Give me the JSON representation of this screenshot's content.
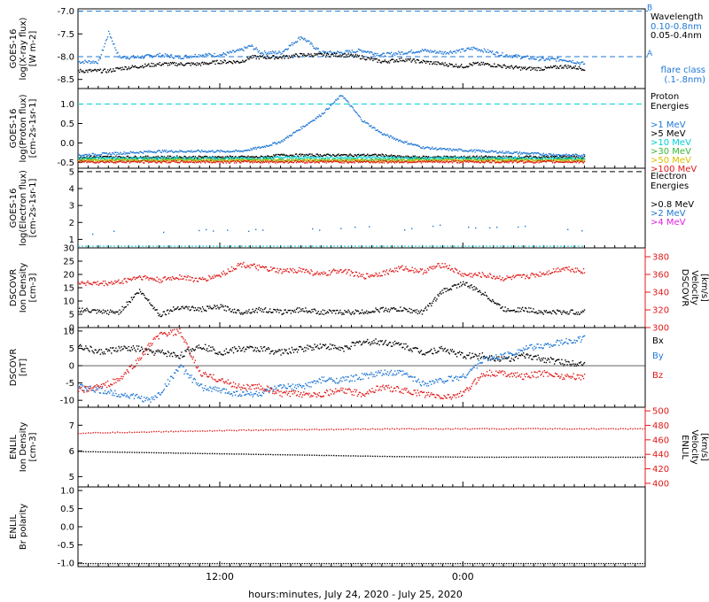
{
  "colors": {
    "black": "#000000",
    "blue": "#1f77d4",
    "cyan": "#00d0d8",
    "green": "#3ab83a",
    "yellow": "#d8c000",
    "orange": "#f07f00",
    "red": "#e01818",
    "magenta": "#e020e0",
    "grid": "#9a9a9a"
  },
  "x_axis": {
    "label": "hours:minutes, July 24, 2020 - July 25, 2020",
    "ticks": [
      "12:00",
      "0:00"
    ]
  },
  "chart_data": [
    {
      "type": "scatter",
      "panel": "goes-xray",
      "ylabel": [
        "GOES-16",
        "log(X-ray flux)",
        "[W m-2]"
      ],
      "yticks": [
        "-7.0",
        "-7.5",
        "-8.0",
        "-8.5"
      ],
      "ylim": [
        -8.7,
        -6.95
      ],
      "legend": {
        "title": "Wavelength",
        "entries": [
          "0.10-0.8nm",
          "0.05-0.4nm"
        ],
        "note": [
          "flare class",
          "(.1-.8nm)"
        ]
      },
      "reference_lines": [
        {
          "label": "B",
          "value": -7.0
        },
        {
          "label": "A",
          "value": -8.0
        }
      ],
      "x_hours": [
        0,
        1,
        1.5,
        2,
        3,
        4,
        5,
        6,
        7,
        8,
        8.5,
        9,
        10,
        11,
        12,
        13,
        14,
        15,
        16,
        17,
        18,
        19,
        19.5,
        20,
        21,
        22,
        23,
        24,
        25
      ],
      "series": [
        {
          "name": "0.10-0.8nm",
          "color": "blue",
          "values": [
            -8.1,
            -8.1,
            -7.45,
            -8.0,
            -8.0,
            -7.95,
            -8.0,
            -7.95,
            -7.95,
            -7.85,
            -7.75,
            -7.9,
            -7.9,
            -7.55,
            -7.9,
            -7.9,
            -7.85,
            -7.95,
            -7.9,
            -7.85,
            -7.9,
            -7.85,
            -7.8,
            -7.85,
            -7.95,
            -8.0,
            -8.05,
            -8.05,
            -8.15
          ]
        },
        {
          "name": "0.05-0.4nm",
          "color": "black",
          "values": [
            -8.3,
            -8.3,
            -8.3,
            -8.25,
            -8.2,
            -8.15,
            -8.15,
            -8.15,
            -8.1,
            -8.1,
            -8.0,
            -8.0,
            -8.0,
            -7.95,
            -7.95,
            -7.95,
            -8.0,
            -8.1,
            -8.05,
            -8.1,
            -8.15,
            -8.2,
            -8.15,
            -8.15,
            -8.2,
            -8.25,
            -8.25,
            -8.2,
            -8.25
          ]
        }
      ]
    },
    {
      "type": "scatter",
      "panel": "goes-proton",
      "ylabel": [
        "GOES-16",
        "log(Proton flux)",
        "[cm-2s-1sr-1]"
      ],
      "yticks": [
        "1.0",
        "0.5",
        "0.0",
        "-0.5"
      ],
      "ylim": [
        -0.65,
        1.4
      ],
      "legend": {
        "title": [
          "Proton",
          "Energies"
        ],
        "entries": [
          ">1 MeV",
          ">5 MeV",
          ">10 MeV",
          ">30 MeV",
          ">50 MeV",
          ">100 MeV"
        ]
      },
      "reference_lines": [
        {
          "value": 1.0
        }
      ],
      "x_hours": [
        0,
        2,
        4,
        6,
        8,
        9,
        10,
        11,
        12,
        13,
        14,
        15,
        16,
        17,
        18,
        20,
        22,
        24,
        25
      ],
      "series": [
        {
          "name": ">1 MeV",
          "color": "blue",
          "values": [
            -0.3,
            -0.25,
            -0.2,
            -0.2,
            -0.2,
            -0.1,
            0.05,
            0.4,
            0.75,
            1.25,
            0.6,
            0.25,
            0.05,
            -0.1,
            -0.15,
            -0.2,
            -0.25,
            -0.3,
            -0.3
          ]
        },
        {
          "name": ">5 MeV",
          "color": "black",
          "values": [
            -0.35,
            -0.35,
            -0.35,
            -0.35,
            -0.35,
            -0.35,
            -0.3,
            -0.3,
            -0.3,
            -0.3,
            -0.3,
            -0.3,
            -0.35,
            -0.35,
            -0.35,
            -0.35,
            -0.35,
            -0.35,
            -0.35
          ]
        },
        {
          "name": ">10 MeV",
          "color": "cyan",
          "values": [
            -0.38,
            -0.38,
            -0.38,
            -0.38,
            -0.38,
            -0.38,
            -0.36,
            -0.36,
            -0.36,
            -0.36,
            -0.36,
            -0.36,
            -0.38,
            -0.38,
            -0.38,
            -0.38,
            -0.38,
            -0.38,
            -0.38
          ]
        },
        {
          "name": ">30 MeV",
          "color": "green",
          "values": [
            -0.42,
            -0.42,
            -0.42,
            -0.42,
            -0.42,
            -0.42,
            -0.42,
            -0.42,
            -0.42,
            -0.42,
            -0.42,
            -0.42,
            -0.42,
            -0.42,
            -0.42,
            -0.42,
            -0.42,
            -0.42,
            -0.42
          ]
        },
        {
          "name": ">50 MeV",
          "color": "yellow",
          "values": [
            -0.44,
            -0.44,
            -0.44,
            -0.44,
            -0.44,
            -0.44,
            -0.44,
            -0.44,
            -0.44,
            -0.44,
            -0.44,
            -0.44,
            -0.44,
            -0.44,
            -0.44,
            -0.44,
            -0.44,
            -0.44,
            -0.44
          ]
        },
        {
          "name": ">100 MeV",
          "color": "red",
          "values": [
            -0.47,
            -0.47,
            -0.47,
            -0.47,
            -0.47,
            -0.47,
            -0.47,
            -0.47,
            -0.47,
            -0.47,
            -0.47,
            -0.47,
            -0.47,
            -0.47,
            -0.47,
            -0.47,
            -0.47,
            -0.47,
            -0.47
          ]
        }
      ]
    },
    {
      "type": "scatter",
      "panel": "goes-electron",
      "ylabel": [
        "GOES-16",
        "log(Electron flux)",
        "[cm-2s-1sr-1]"
      ],
      "yticks": [
        "5",
        "4",
        "3",
        "2",
        "1"
      ],
      "ylim": [
        0.5,
        5.2
      ],
      "legend": {
        "title": [
          "Electron",
          "Energies"
        ],
        "entries": [
          ">0.8 MeV",
          ">2 MeV",
          ">4 MeV"
        ]
      },
      "reference_lines": [
        {
          "value": 5.0
        }
      ],
      "x_hours": [
        0,
        2,
        4,
        6,
        8,
        10,
        12,
        14,
        16,
        18,
        20,
        22,
        24,
        25
      ],
      "series": [
        {
          "name": ">0.8 MeV",
          "color": "black",
          "values": []
        },
        {
          "name": ">2 MeV",
          "color": "blue",
          "values": [
            1.3,
            1.5,
            1.4,
            1.6,
            1.5,
            1.7,
            1.6,
            1.8,
            1.6,
            1.9,
            1.7,
            1.8,
            1.6,
            1.5
          ]
        },
        {
          "name": ">4 MeV",
          "color": "magenta",
          "values": []
        }
      ],
      "baseline": {
        "color": "cyan",
        "value": 0.6
      }
    },
    {
      "type": "scatter",
      "panel": "dscovr-plasma",
      "ylabel": [
        "DSCOVR",
        "Ion Density",
        "[cm-3]"
      ],
      "yticks": [
        "30",
        "25",
        "20",
        "15",
        "10",
        "5",
        "0"
      ],
      "ylim": [
        0,
        30
      ],
      "y2label": [
        "DSCOVR",
        "Velocity",
        "[km/s]"
      ],
      "y2ticks": [
        "380",
        "360",
        "340",
        "320",
        "300"
      ],
      "y2lim": [
        300,
        390
      ],
      "x_hours": [
        0,
        1,
        2,
        3,
        3.5,
        4,
        5,
        6,
        7,
        8,
        9,
        10,
        11,
        12,
        13,
        14,
        15,
        16,
        17,
        18,
        19,
        20,
        21,
        22,
        23,
        24,
        25
      ],
      "series": [
        {
          "name": "Ion Density",
          "color": "black",
          "axis": "left",
          "values": [
            7,
            6,
            6,
            14,
            10,
            5,
            8,
            7,
            8,
            6,
            7,
            6,
            7,
            6,
            6,
            6,
            7,
            7,
            6,
            14,
            17,
            13,
            7,
            7,
            6,
            6,
            6
          ]
        },
        {
          "name": "Velocity",
          "color": "red",
          "axis": "right",
          "values": [
            352,
            350,
            352,
            358,
            356,
            354,
            358,
            354,
            360,
            372,
            368,
            364,
            366,
            360,
            366,
            358,
            362,
            368,
            364,
            372,
            360,
            360,
            356,
            358,
            362,
            368,
            364
          ]
        }
      ]
    },
    {
      "type": "scatter",
      "panel": "dscovr-mag",
      "ylabel": [
        "DSCOVR",
        "[nT]"
      ],
      "yticks": [
        "10",
        "5",
        "0",
        "-5",
        "-10"
      ],
      "ylim": [
        -12,
        11
      ],
      "legend": {
        "entries": [
          "Bx",
          "By",
          "Bz"
        ]
      },
      "x_hours": [
        0,
        1,
        2,
        3,
        3.5,
        4,
        5,
        6,
        7,
        8,
        9,
        10,
        11,
        12,
        13,
        14,
        15,
        16,
        17,
        18,
        19,
        20,
        21,
        22,
        23,
        24,
        25
      ],
      "series": [
        {
          "name": "Bx",
          "color": "black",
          "values": [
            6,
            4,
            5,
            5,
            4,
            4,
            3,
            6,
            4,
            5,
            5,
            4,
            5,
            6,
            5,
            7,
            7,
            6,
            4,
            5,
            3,
            3,
            2,
            3,
            2,
            1,
            1
          ]
        },
        {
          "name": "By",
          "color": "blue",
          "values": [
            -6,
            -7,
            -8,
            -9,
            -10,
            -8,
            0,
            -6,
            -7,
            -8,
            -8,
            -6,
            -6,
            -4,
            -4,
            -3,
            -2,
            -2,
            -5,
            -4,
            -3,
            2,
            3,
            5,
            6,
            7,
            8
          ]
        },
        {
          "name": "Bz",
          "color": "red",
          "values": [
            -7,
            -6,
            -4,
            2,
            6,
            9,
            10,
            -2,
            -4,
            -6,
            -6,
            -8,
            -8,
            -8,
            -7,
            -8,
            -6,
            -7,
            -8,
            -9,
            -8,
            -2,
            -2,
            -3,
            -2,
            -3,
            -3
          ]
        }
      ]
    },
    {
      "type": "scatter",
      "panel": "enlil-plasma",
      "ylabel": [
        "ENLIL",
        "Ion Density",
        "[cm-3]"
      ],
      "yticks": [
        "7",
        "6",
        "5"
      ],
      "ylim": [
        4.6,
        7.7
      ],
      "y2label": [
        "ENLIL",
        "Velocity",
        "[km/s]"
      ],
      "y2ticks": [
        "500",
        "480",
        "460",
        "440",
        "420",
        "400"
      ],
      "y2lim": [
        395,
        505
      ],
      "x_hours": [
        0,
        4,
        8,
        12,
        16,
        20,
        24,
        28
      ],
      "series": [
        {
          "name": "Ion Density",
          "color": "black",
          "axis": "left",
          "values": [
            6.0,
            5.95,
            5.9,
            5.85,
            5.8,
            5.78,
            5.78,
            5.78
          ]
        },
        {
          "name": "Velocity",
          "color": "red",
          "axis": "right",
          "values": [
            470,
            472,
            474,
            475,
            476,
            476,
            476,
            476
          ]
        }
      ]
    },
    {
      "type": "scatter",
      "panel": "enlil-polarity",
      "ylabel": [
        "ENLIL",
        "Br polarity"
      ],
      "yticks": [
        "1.0",
        "0.5",
        "0.0",
        "-0.5",
        "-1.0"
      ],
      "ylim": [
        -1.1,
        1.1
      ],
      "x_hours": [
        0,
        28
      ],
      "series": [
        {
          "name": "Br polarity",
          "color": "black",
          "values": [
            -1.0,
            -1.0
          ]
        }
      ]
    }
  ]
}
